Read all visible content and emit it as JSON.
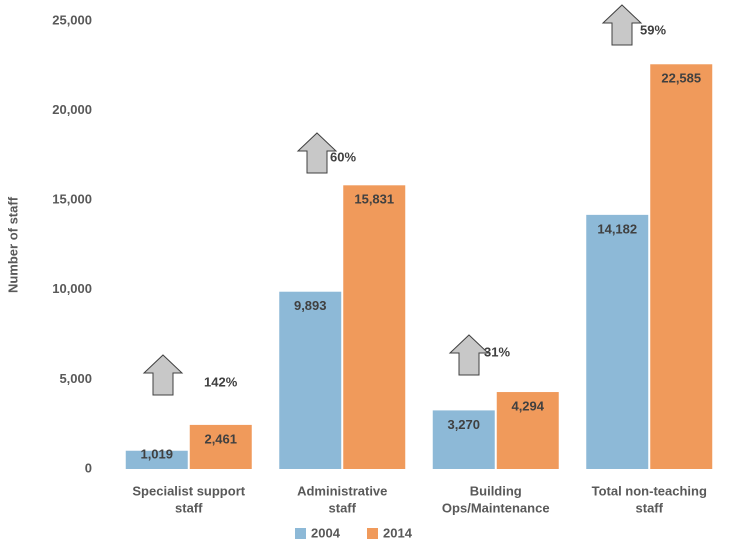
{
  "chart_data": {
    "type": "bar",
    "y_label": "Number of staff",
    "categories": [
      [
        "Specialist support",
        "staff"
      ],
      [
        "Administrative",
        "staff"
      ],
      [
        "Building",
        "Ops/Maintenance"
      ],
      [
        "Total non-teaching",
        "staff"
      ]
    ],
    "series": [
      {
        "name": "2004",
        "color": "#8db9d7",
        "values": [
          1019,
          9893,
          3270,
          14182
        ],
        "value_labels": [
          "1,019",
          "9,893",
          "3,270",
          "14,182"
        ]
      },
      {
        "name": "2014",
        "color": "#f09a5b",
        "values": [
          2461,
          15831,
          4294,
          22585
        ],
        "value_labels": [
          "2,461",
          "15,831",
          "4,294",
          "22,585"
        ]
      }
    ],
    "annotations": [
      "142%",
      "60%",
      "31%",
      "59%"
    ],
    "ylim": [
      0,
      25000
    ],
    "yticks": [
      0,
      {
        "value": 5000,
        "label": "5,000"
      },
      {
        "value": 10000,
        "label": "10,000"
      },
      {
        "value": 15000,
        "label": "15,000"
      },
      {
        "value": 20000,
        "label": "20,000"
      },
      {
        "value": 25000,
        "label": "25,000"
      }
    ],
    "grid": false,
    "legend": "bottom"
  }
}
